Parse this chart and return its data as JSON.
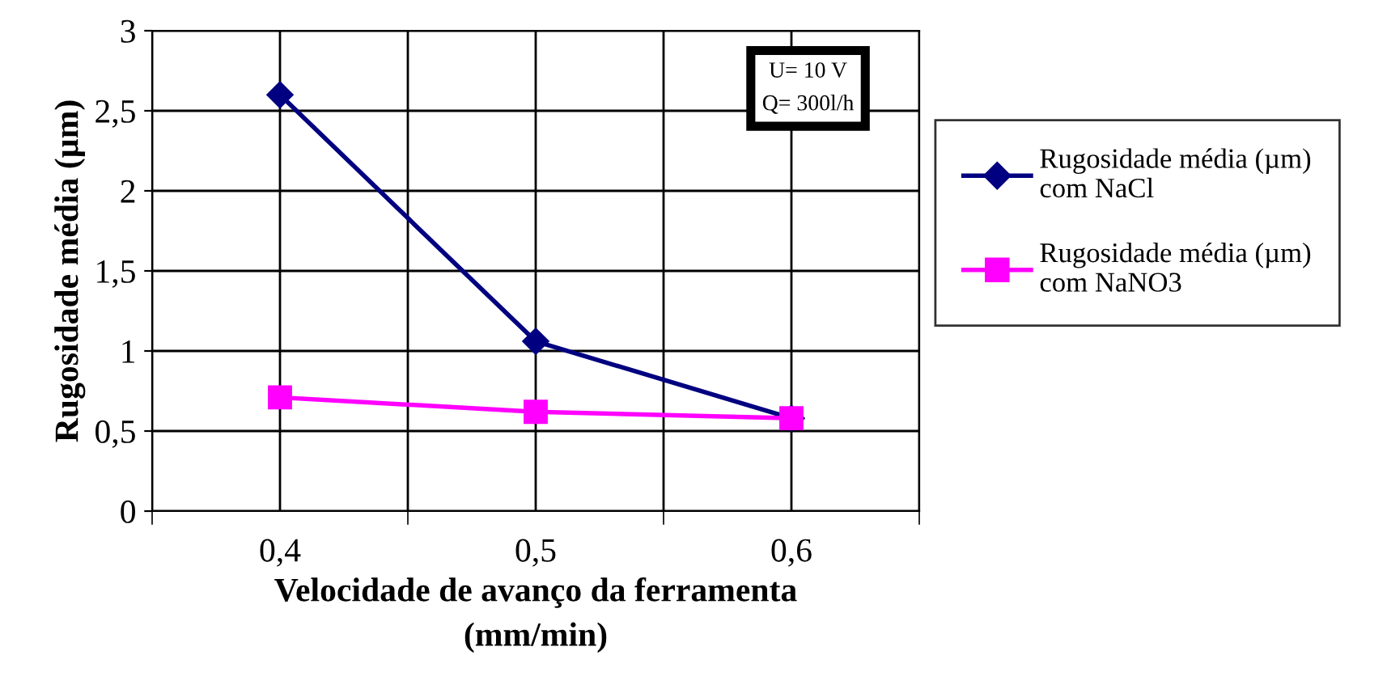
{
  "chart_data": {
    "type": "line",
    "xlabel": "Velocidade de avanço da ferramenta\n(mm/min)",
    "ylabel": "Rugosidade média (µm)",
    "categories": [
      "0,4",
      "0,5",
      "0,6"
    ],
    "series": [
      {
        "name": "Rugosidade média (µm)\ncom NaCl",
        "color": "#000080",
        "marker": "diamond",
        "values": [
          2.6,
          1.06,
          0.58
        ]
      },
      {
        "name": "Rugosidade média (µm)\ncom NaNO3",
        "color": "#ff00ff",
        "marker": "square",
        "values": [
          0.71,
          0.62,
          0.58
        ]
      }
    ],
    "ylim": [
      0,
      3
    ],
    "yticks": [
      0,
      {
        "value": 0.5,
        "label": "0,5"
      },
      1,
      {
        "value": 1.5,
        "label": "1,5"
      },
      2,
      {
        "value": 2.5,
        "label": "2,5"
      },
      3
    ],
    "grid": true,
    "legend": "right",
    "annotations": [
      "U= 10 V\nQ= 300l/h"
    ]
  }
}
